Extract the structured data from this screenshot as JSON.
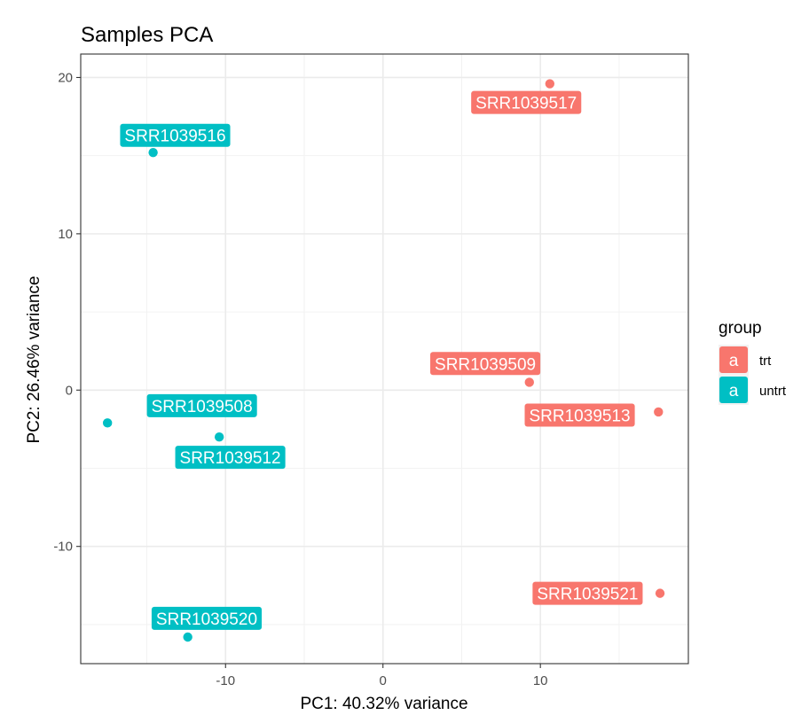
{
  "chart_data": {
    "type": "scatter",
    "title": "Samples PCA",
    "xlabel": "PC1: 40.32% variance",
    "ylabel": "PC2: 26.46% variance",
    "xlim": [
      -19.2,
      19.4
    ],
    "ylim": [
      -17.5,
      21.5
    ],
    "x_ticks": [
      {
        "value": -10,
        "label": "-10"
      },
      {
        "value": 0,
        "label": "0"
      },
      {
        "value": 10,
        "label": "10"
      }
    ],
    "y_ticks": [
      {
        "value": -10,
        "label": "-10"
      },
      {
        "value": 0,
        "label": "0"
      },
      {
        "value": 10,
        "label": "10"
      },
      {
        "value": 20,
        "label": "20"
      }
    ],
    "grid": true,
    "legend": {
      "title": "group",
      "position": "right",
      "key_glyph": "a",
      "entries": [
        {
          "name": "trt",
          "color": "#F8766D"
        },
        {
          "name": "untrt",
          "color": "#00BFC4"
        }
      ]
    },
    "points": [
      {
        "label": "SRR1039508",
        "group": "untrt",
        "x": -17.5,
        "y": -2.1,
        "label_x": -11.5,
        "label_y": -1.0
      },
      {
        "label": "SRR1039509",
        "group": "trt",
        "x": 9.3,
        "y": 0.5,
        "label_x": 6.5,
        "label_y": 1.7
      },
      {
        "label": "SRR1039512",
        "group": "untrt",
        "x": -10.4,
        "y": -3.0,
        "label_x": -9.7,
        "label_y": -4.3
      },
      {
        "label": "SRR1039513",
        "group": "trt",
        "x": 17.5,
        "y": -1.4,
        "label_x": 12.5,
        "label_y": -1.6
      },
      {
        "label": "SRR1039516",
        "group": "untrt",
        "x": -14.6,
        "y": 15.2,
        "label_x": -13.2,
        "label_y": 16.3
      },
      {
        "label": "SRR1039517",
        "group": "trt",
        "x": 10.6,
        "y": 19.6,
        "label_x": 9.1,
        "label_y": 18.4
      },
      {
        "label": "SRR1039520",
        "group": "untrt",
        "x": -12.4,
        "y": -15.8,
        "label_x": -11.2,
        "label_y": -14.6
      },
      {
        "label": "SRR1039521",
        "group": "trt",
        "x": 17.6,
        "y": -13.0,
        "label_x": 13.0,
        "label_y": -13.0
      }
    ]
  }
}
